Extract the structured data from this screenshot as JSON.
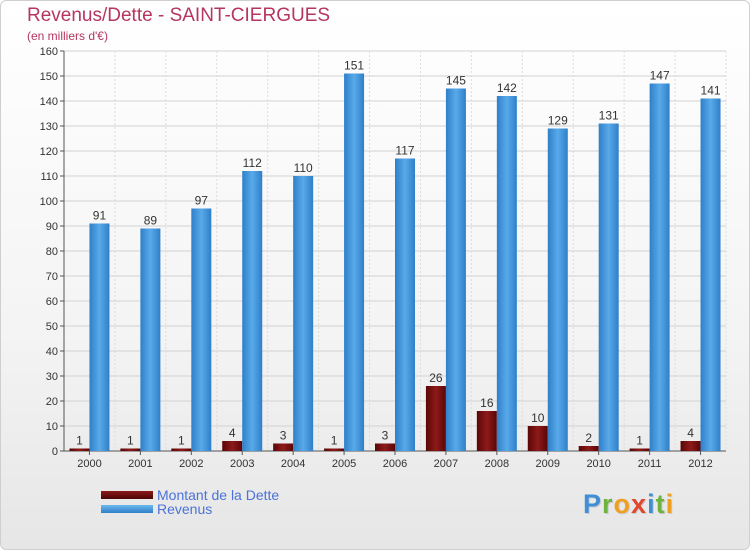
{
  "chart_data": {
    "type": "bar",
    "title": "Revenus/Dette - SAINT-CIERGUES",
    "subtitle": "(en milliers d'€)",
    "categories": [
      "2000",
      "2001",
      "2002",
      "2003",
      "2004",
      "2005",
      "2006",
      "2007",
      "2008",
      "2009",
      "2010",
      "2011",
      "2012"
    ],
    "series": [
      {
        "name": "Montant de la Dette",
        "color": "#7a0e0e",
        "values": [
          1,
          1,
          1,
          4,
          3,
          1,
          3,
          26,
          16,
          10,
          2,
          1,
          4
        ]
      },
      {
        "name": "Revenus",
        "color": "#3d93dc",
        "values": [
          91,
          89,
          97,
          112,
          110,
          151,
          117,
          145,
          142,
          129,
          131,
          147,
          141
        ]
      }
    ],
    "ylim": [
      0,
      160
    ],
    "yticks": [
      0,
      10,
      20,
      30,
      40,
      50,
      60,
      70,
      80,
      90,
      100,
      110,
      120,
      130,
      140,
      150,
      160
    ],
    "grid": true,
    "legend_position": "bottom-left"
  },
  "logo": {
    "letters": [
      {
        "ch": "P",
        "color": "#3f8fd6"
      },
      {
        "ch": "r",
        "color": "#6cb33f"
      },
      {
        "ch": "o",
        "color": "#f0a020"
      },
      {
        "ch": "x",
        "color": "#e2462c"
      },
      {
        "ch": "i",
        "color": "#3f8fd6"
      },
      {
        "ch": "t",
        "color": "#6cb33f"
      },
      {
        "ch": "i",
        "color": "#f0a020"
      }
    ]
  }
}
